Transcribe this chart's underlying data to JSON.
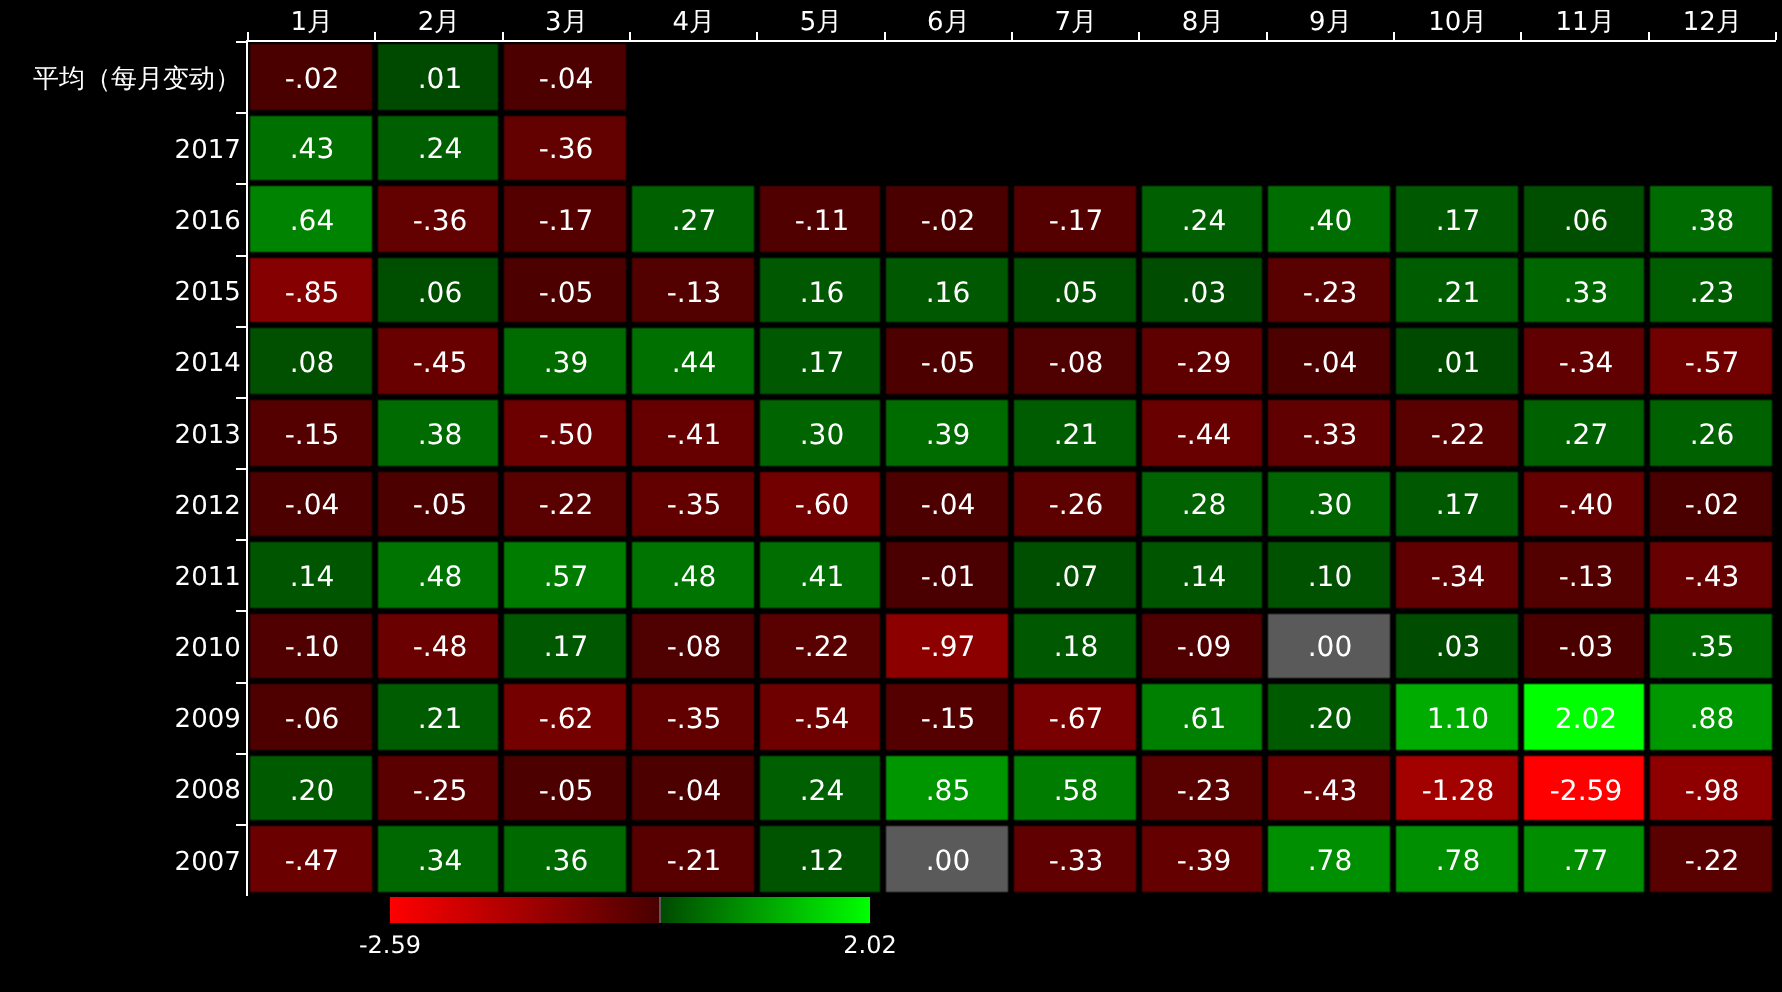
{
  "chart_data": {
    "type": "heatmap",
    "categories": [
      "1月",
      "2月",
      "3月",
      "4月",
      "5月",
      "6月",
      "7月",
      "8月",
      "9月",
      "10月",
      "11月",
      "12月"
    ],
    "y_categories": [
      "平均（每月变动）",
      "2017",
      "2016",
      "2015",
      "2014",
      "2013",
      "2012",
      "2011",
      "2010",
      "2009",
      "2008",
      "2007"
    ],
    "cells": [
      [
        -0.02,
        0.01,
        -0.04,
        null,
        null,
        null,
        null,
        null,
        null,
        null,
        null,
        null
      ],
      [
        0.43,
        0.24,
        -0.36,
        null,
        null,
        null,
        null,
        null,
        null,
        null,
        null,
        null
      ],
      [
        0.64,
        -0.36,
        -0.17,
        0.27,
        -0.11,
        -0.02,
        -0.17,
        0.24,
        0.4,
        0.17,
        0.06,
        0.38
      ],
      [
        -0.85,
        0.06,
        -0.05,
        -0.13,
        0.16,
        0.16,
        0.05,
        0.03,
        -0.23,
        0.21,
        0.33,
        0.23
      ],
      [
        0.08,
        -0.45,
        0.39,
        0.44,
        0.17,
        -0.05,
        -0.08,
        -0.29,
        -0.04,
        0.01,
        -0.34,
        -0.57
      ],
      [
        -0.15,
        0.38,
        -0.5,
        -0.41,
        0.3,
        0.39,
        0.21,
        -0.44,
        -0.33,
        -0.22,
        0.27,
        0.26
      ],
      [
        -0.04,
        -0.05,
        -0.22,
        -0.35,
        -0.6,
        -0.04,
        -0.26,
        0.28,
        0.3,
        0.17,
        -0.4,
        -0.02
      ],
      [
        0.14,
        0.48,
        0.57,
        0.48,
        0.41,
        -0.01,
        0.07,
        0.14,
        0.1,
        -0.34,
        -0.13,
        -0.43
      ],
      [
        -0.1,
        -0.48,
        0.17,
        -0.08,
        -0.22,
        -0.97,
        0.18,
        -0.09,
        0.0,
        0.03,
        -0.03,
        0.35
      ],
      [
        -0.06,
        0.21,
        -0.62,
        -0.35,
        -0.54,
        -0.15,
        -0.67,
        0.61,
        0.2,
        1.1,
        2.02,
        0.88
      ],
      [
        0.2,
        -0.25,
        -0.05,
        -0.04,
        0.24,
        0.85,
        0.58,
        -0.23,
        -0.43,
        -1.28,
        -2.59,
        -0.98
      ],
      [
        -0.47,
        0.34,
        0.36,
        -0.21,
        0.12,
        0.0,
        -0.33,
        -0.39,
        0.78,
        0.78,
        0.77,
        -0.22
      ]
    ],
    "cell_labels": [
      [
        "-.02",
        ".01",
        "-.04",
        null,
        null,
        null,
        null,
        null,
        null,
        null,
        null,
        null
      ],
      [
        ".43",
        ".24",
        "-.36",
        null,
        null,
        null,
        null,
        null,
        null,
        null,
        null,
        null
      ],
      [
        ".64",
        "-.36",
        "-.17",
        ".27",
        "-.11",
        "-.02",
        "-.17",
        ".24",
        ".40",
        ".17",
        ".06",
        ".38"
      ],
      [
        "-.85",
        ".06",
        "-.05",
        "-.13",
        ".16",
        ".16",
        ".05",
        ".03",
        "-.23",
        ".21",
        ".33",
        ".23"
      ],
      [
        ".08",
        "-.45",
        ".39",
        ".44",
        ".17",
        "-.05",
        "-.08",
        "-.29",
        "-.04",
        ".01",
        "-.34",
        "-.57"
      ],
      [
        "-.15",
        ".38",
        "-.50",
        "-.41",
        ".30",
        ".39",
        ".21",
        "-.44",
        "-.33",
        "-.22",
        ".27",
        ".26"
      ],
      [
        "-.04",
        "-.05",
        "-.22",
        "-.35",
        "-.60",
        "-.04",
        "-.26",
        ".28",
        ".30",
        ".17",
        "-.40",
        "-.02"
      ],
      [
        ".14",
        ".48",
        ".57",
        ".48",
        ".41",
        "-.01",
        ".07",
        ".14",
        ".10",
        "-.34",
        "-.13",
        "-.43"
      ],
      [
        "-.10",
        "-.48",
        ".17",
        "-.08",
        "-.22",
        "-.97",
        ".18",
        "-.09",
        ".00",
        ".03",
        "-.03",
        ".35"
      ],
      [
        "-.06",
        ".21",
        "-.62",
        "-.35",
        "-.54",
        "-.15",
        "-.67",
        ".61",
        ".20",
        "1.10",
        "2.02",
        ".88"
      ],
      [
        ".20",
        "-.25",
        "-.05",
        "-.04",
        ".24",
        ".85",
        ".58",
        "-.23",
        "-.43",
        "-1.28",
        "-2.59",
        "-.98"
      ],
      [
        "-.47",
        ".34",
        ".36",
        "-.21",
        ".12",
        ".00",
        "-.33",
        "-.39",
        ".78",
        ".78",
        ".77",
        "-.22"
      ]
    ],
    "clim": [
      -2.59,
      2.02
    ],
    "cticks": [
      -2.59,
      2.02
    ]
  }
}
